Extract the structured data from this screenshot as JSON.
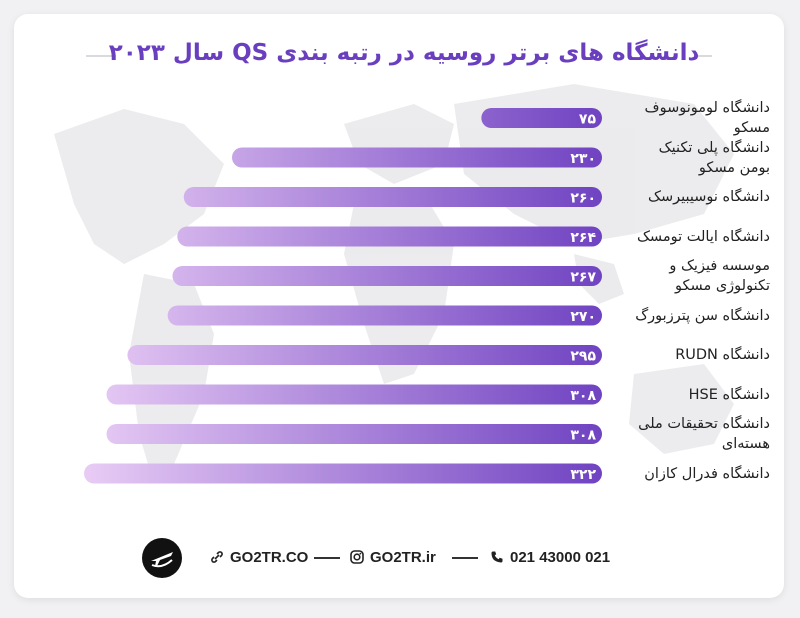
{
  "title": "دانشگاه های برتر روسیه در رتبه بندی QS سال ۲۰۲۳",
  "chart_data": {
    "type": "bar",
    "orientation": "horizontal",
    "categories": [
      [
        "دانشگاه لومونوسوف",
        "مسکو"
      ],
      [
        "دانشگاه پلی تکنیک",
        "بومن مسکو"
      ],
      [
        "دانشگاه نوسیبیرسک"
      ],
      [
        "دانشگاه ایالت تومسک"
      ],
      [
        "موسسه فیزیک و",
        "تکنولوژی مسکو"
      ],
      [
        "دانشگاه سن پترزبورگ"
      ],
      [
        "دانشگاه RUDN"
      ],
      [
        "دانشگاه HSE"
      ],
      [
        "دانشگاه تحقیقات ملی",
        "هسته‌ای"
      ],
      [
        "دانشگاه فدرال کازان"
      ]
    ],
    "values": [
      75,
      230,
      260,
      264,
      267,
      270,
      295,
      308,
      308,
      322
    ],
    "value_labels": [
      "۷۵",
      "۲۳۰",
      "۲۶۰",
      "۲۶۴",
      "۲۶۷",
      "۲۷۰",
      "۲۹۵",
      "۳۰۸",
      "۳۰۸",
      "۳۲۲"
    ],
    "colors": {
      "start": "#6f42c1",
      "end": "#e7c6f4"
    }
  },
  "footer": {
    "website": "GO2TR.CO",
    "instagram": "GO2TR.ir",
    "phone": "021 43000 021"
  }
}
